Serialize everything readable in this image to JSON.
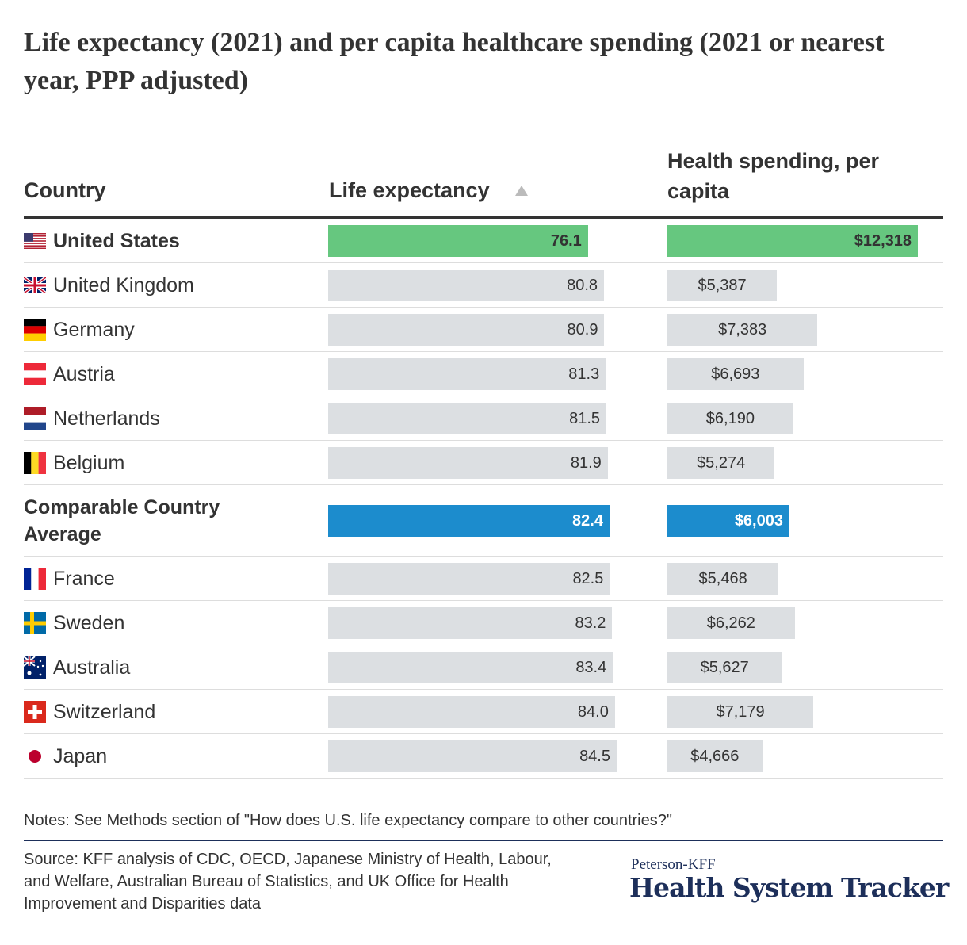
{
  "title": "Life expectancy (2021) and per capita healthcare spending (2021 or nearest year, PPP adjusted)",
  "table": {
    "headers": [
      "Country",
      "Life expectancy",
      "Health spending, per capita"
    ],
    "rows": [
      {
        "country": "United States",
        "life_expectancy": 76.1,
        "life_expectancy_label": "76.1",
        "spending": 12318,
        "spending_label": "$12,318"
      },
      {
        "country": "United Kingdom",
        "life_expectancy": 80.8,
        "life_expectancy_label": "80.8",
        "spending": 5387,
        "spending_label": "$5,387"
      },
      {
        "country": "Germany",
        "life_expectancy": 80.9,
        "life_expectancy_label": "80.9",
        "spending": 7383,
        "spending_label": "$7,383"
      },
      {
        "country": "Austria",
        "life_expectancy": 81.3,
        "life_expectancy_label": "81.3",
        "spending": 6693,
        "spending_label": "$6,693"
      },
      {
        "country": "Netherlands",
        "life_expectancy": 81.5,
        "life_expectancy_label": "81.5",
        "spending": 6190,
        "spending_label": "$6,190"
      },
      {
        "country": "Belgium",
        "life_expectancy": 81.9,
        "life_expectancy_label": "81.9",
        "spending": 5274,
        "spending_label": "$5,274"
      },
      {
        "country": "Comparable Country Average",
        "life_expectancy": 82.4,
        "life_expectancy_label": "82.4",
        "spending": 6003,
        "spending_label": "$6,003"
      },
      {
        "country": "France",
        "life_expectancy": 82.5,
        "life_expectancy_label": "82.5",
        "spending": 5468,
        "spending_label": "$5,468"
      },
      {
        "country": "Sweden",
        "life_expectancy": 83.2,
        "life_expectancy_label": "83.2",
        "spending": 6262,
        "spending_label": "$6,262"
      },
      {
        "country": "Australia",
        "life_expectancy": 83.4,
        "life_expectancy_label": "83.4",
        "spending": 5627,
        "spending_label": "$5,627"
      },
      {
        "country": "Switzerland",
        "life_expectancy": 84.0,
        "life_expectancy_label": "84.0",
        "spending": 7179,
        "spending_label": "$7,179"
      },
      {
        "country": "Japan",
        "life_expectancy": 84.5,
        "life_expectancy_label": "84.5",
        "spending": 4666,
        "spending_label": "$4,666"
      }
    ]
  },
  "notes": "Notes: See Methods section of \"How does U.S. life expectancy compare to other countries?\"",
  "source": "Source: KFF analysis of CDC, OECD, Japanese Ministry of Health, Labour, and Welfare, Australian Bureau of Statistics, and UK Office for Health Improvement and Disparities data",
  "logo": {
    "top": "Peterson-KFF",
    "main": "Health System Tracker"
  }
}
